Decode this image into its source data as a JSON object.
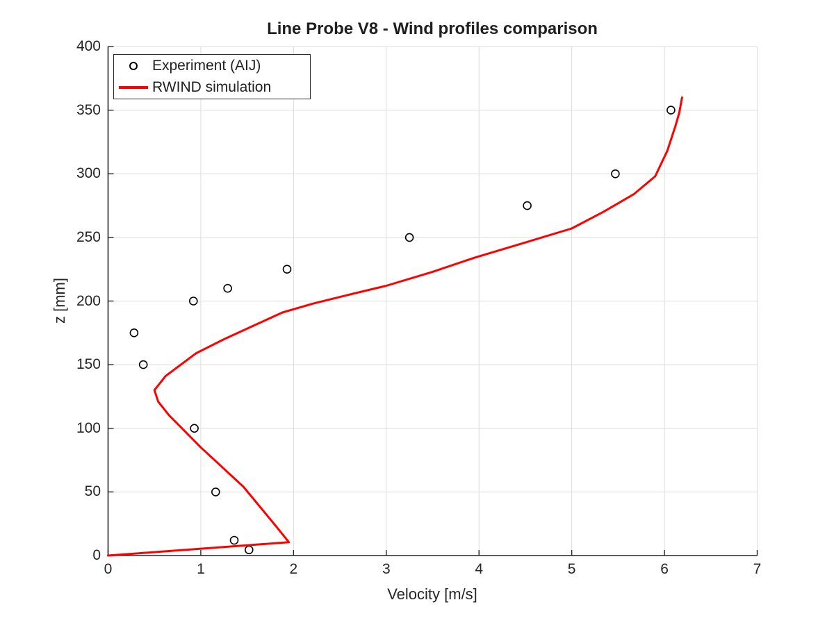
{
  "chart_data": {
    "type": "line",
    "title": "Line Probe V8 - Wind profiles comparison",
    "xlabel": "Velocity [m/s]",
    "ylabel": "z [mm]",
    "xlim": [
      0,
      7
    ],
    "ylim": [
      0,
      400
    ],
    "xticks": [
      0,
      1,
      2,
      3,
      4,
      5,
      6,
      7
    ],
    "yticks": [
      0,
      50,
      100,
      150,
      200,
      250,
      300,
      350,
      400
    ],
    "grid": true,
    "legend_position": "top-left",
    "colors": {
      "background": "#ffffff",
      "axis": "#262626",
      "grid": "#dcdcdc",
      "text": "#262626",
      "experiment_marker": "#000000",
      "simulation_line": "#ff0000"
    },
    "series": [
      {
        "name": "Experiment (AIJ)",
        "type": "scatter",
        "marker": "open-circle",
        "color": "#000000",
        "points": [
          [
            1.52,
            4.5
          ],
          [
            1.36,
            12
          ],
          [
            1.16,
            50
          ],
          [
            0.93,
            100
          ],
          [
            0.38,
            150
          ],
          [
            0.28,
            175
          ],
          [
            0.92,
            200
          ],
          [
            1.29,
            210
          ],
          [
            1.93,
            225
          ],
          [
            3.25,
            250
          ],
          [
            4.52,
            275
          ],
          [
            5.47,
            300
          ],
          [
            6.07,
            350
          ]
        ]
      },
      {
        "name": "RWIND simulation",
        "type": "line",
        "color": "#ff0000",
        "line_width": 3,
        "points": [
          [
            0.0,
            0
          ],
          [
            1.95,
            10.5
          ],
          [
            1.8,
            24
          ],
          [
            1.46,
            54
          ],
          [
            1.0,
            85
          ],
          [
            0.66,
            110
          ],
          [
            0.54,
            121
          ],
          [
            0.5,
            130
          ],
          [
            0.62,
            141
          ],
          [
            0.95,
            159
          ],
          [
            1.25,
            170
          ],
          [
            1.55,
            180
          ],
          [
            1.88,
            191
          ],
          [
            2.21,
            198
          ],
          [
            2.6,
            205
          ],
          [
            3.0,
            212
          ],
          [
            3.5,
            223
          ],
          [
            3.95,
            234
          ],
          [
            4.5,
            246
          ],
          [
            5.0,
            257
          ],
          [
            5.34,
            270
          ],
          [
            5.67,
            284
          ],
          [
            5.9,
            298
          ],
          [
            6.03,
            318
          ],
          [
            6.12,
            338
          ],
          [
            6.16,
            348
          ],
          [
            6.19,
            360
          ]
        ]
      }
    ]
  }
}
